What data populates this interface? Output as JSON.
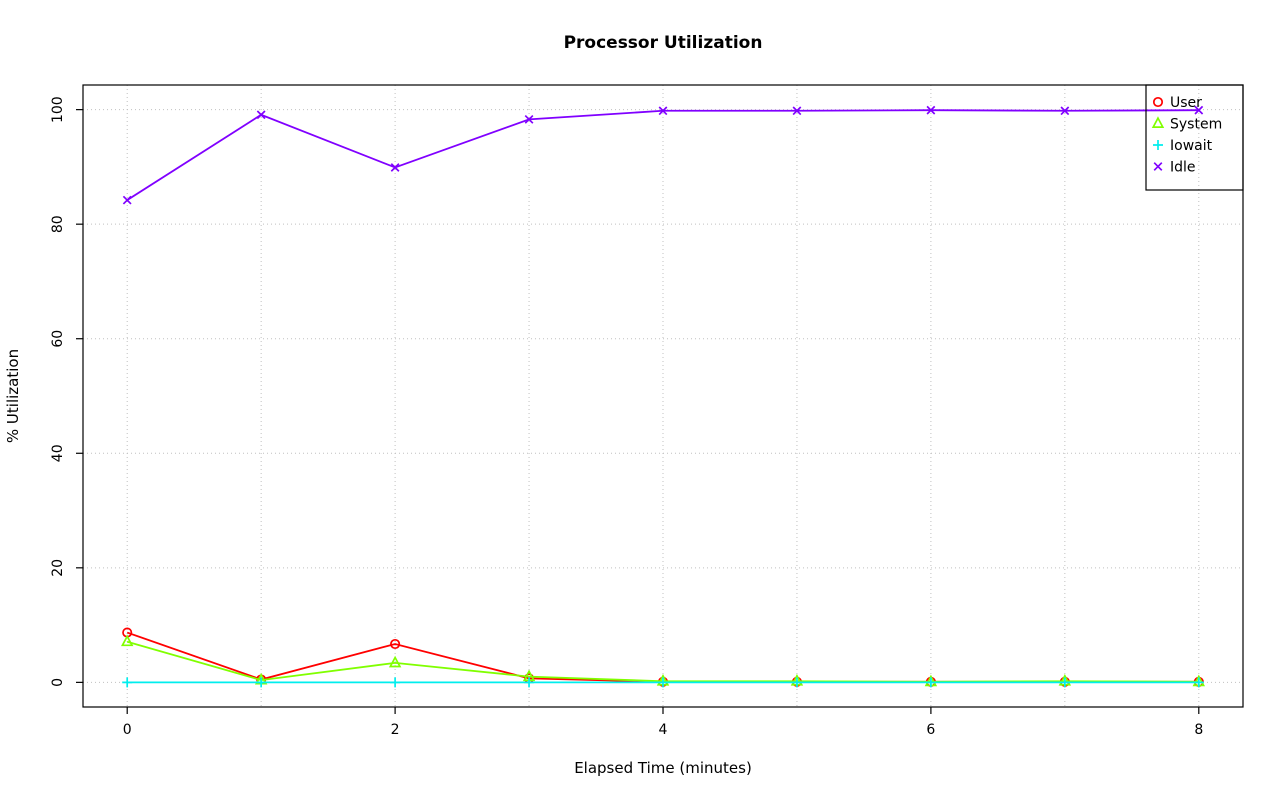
{
  "chart_data": {
    "type": "line",
    "title": "Processor Utilization",
    "xlabel": "Elapsed Time (minutes)",
    "ylabel": "% Utilization",
    "x": [
      0,
      1,
      2,
      3,
      4,
      5,
      6,
      7,
      8
    ],
    "xticks": [
      0,
      2,
      4,
      6,
      8
    ],
    "yticks": [
      0,
      20,
      40,
      60,
      80,
      100
    ],
    "xlim": [
      -0.33,
      8.33
    ],
    "ylim": [
      -4.3,
      104.3
    ],
    "grid": "dotted",
    "grid_x": [
      0,
      1,
      2,
      3,
      4,
      5,
      6,
      7,
      8
    ],
    "grid_y": [
      0,
      20,
      40,
      60,
      80,
      100
    ],
    "grid_color": "#c0c0c0",
    "box_color": "#000000",
    "legend_position": "top-right",
    "series": [
      {
        "name": "User",
        "color": "#ff0000",
        "marker": "circle",
        "values": [
          8.7,
          0.5,
          6.7,
          0.7,
          0.1,
          0.1,
          0.1,
          0.1,
          0.1
        ]
      },
      {
        "name": "System",
        "color": "#80ff00",
        "marker": "triangle",
        "values": [
          7.1,
          0.4,
          3.4,
          1.0,
          0.2,
          0.2,
          0.1,
          0.2,
          0.1
        ]
      },
      {
        "name": "Iowait",
        "color": "#00eeee",
        "marker": "plus",
        "values": [
          0,
          0,
          0,
          0,
          0,
          0,
          0,
          0,
          0
        ]
      },
      {
        "name": "Idle",
        "color": "#8000ff",
        "marker": "x",
        "values": [
          84.2,
          99.1,
          89.9,
          98.3,
          99.8,
          99.8,
          99.9,
          99.8,
          99.9
        ]
      }
    ]
  }
}
